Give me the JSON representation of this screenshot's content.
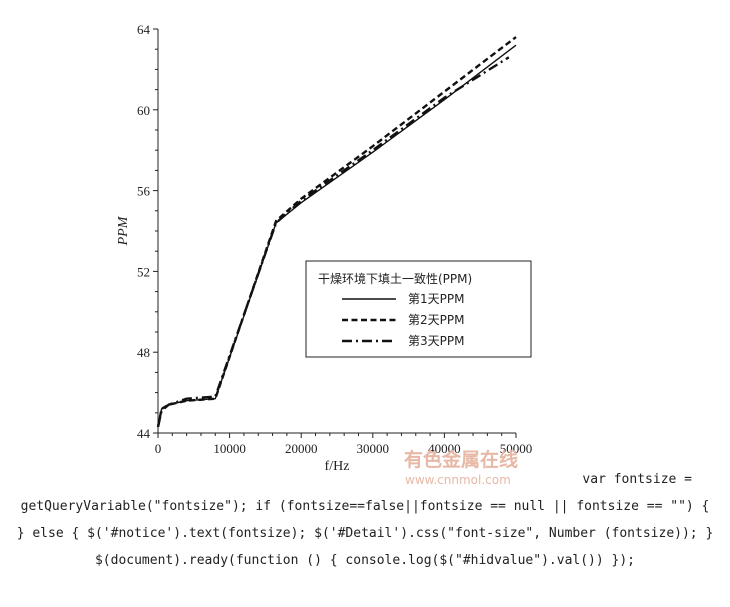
{
  "chart_data": {
    "type": "line",
    "xlabel": "f/Hz",
    "ylabel": "PPM",
    "xlim": [
      0,
      50000
    ],
    "ylim": [
      44,
      64
    ],
    "xticks": [
      0,
      10000,
      20000,
      30000,
      40000,
      50000
    ],
    "yticks": [
      44,
      48,
      52,
      56,
      60,
      64
    ],
    "grid": false,
    "legend": {
      "title": "干燥环境下填土一致性(PPM)",
      "placement": "center-right"
    },
    "series": [
      {
        "name": "第1天PPM",
        "style": "solid",
        "x": [
          0,
          500,
          1500,
          4000,
          8000,
          16500,
          20000,
          30000,
          40000,
          50000
        ],
        "y": [
          44.3,
          45.2,
          45.4,
          45.6,
          45.7,
          54.4,
          55.4,
          57.9,
          60.5,
          63.2
        ]
      },
      {
        "name": "第2天PPM",
        "style": "dashed",
        "x": [
          0,
          500,
          1500,
          4000,
          8000,
          16500,
          20000,
          30000,
          40000,
          50000
        ],
        "y": [
          44.3,
          45.2,
          45.4,
          45.6,
          45.7,
          54.5,
          55.6,
          58.2,
          60.9,
          63.6
        ]
      },
      {
        "name": "第3天PPM",
        "style": "dashdot",
        "x": [
          0,
          500,
          1500,
          4000,
          8000,
          16500,
          20000,
          30000,
          40000,
          49000
        ],
        "y": [
          44.3,
          45.1,
          45.4,
          45.7,
          45.8,
          54.4,
          55.5,
          58.0,
          60.6,
          62.6
        ]
      }
    ]
  },
  "watermark": {
    "cn": "有色金属在线",
    "en": "www.cnnmol.com"
  },
  "code_text": {
    "line1": "var fontsize =",
    "rest": "getQueryVariable(\"fontsize\"); if (fontsize==false||fontsize == null || fontsize == \"\") { } else { $('#notice').text(fontsize); $('#Detail').css(\"font-size\", Number (fontsize)); } $(document).ready(function () { console.log($(\"#hidvalue\").val()) });"
  }
}
